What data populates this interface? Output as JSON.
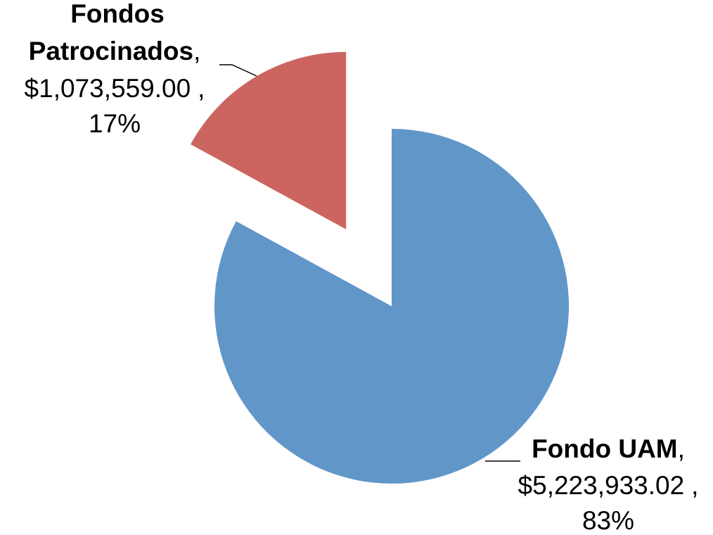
{
  "chart_data": {
    "type": "pie",
    "categories": [
      "Fondo UAM",
      "Fondos Patrocinados"
    ],
    "values": [
      5223933.02,
      1073559.0
    ],
    "value_labels": [
      "$5,223,933.02",
      "$1,073,559.00"
    ],
    "percent_labels": [
      "83%",
      "17%"
    ],
    "separator": ",",
    "colors": [
      "#6196c9",
      "#cc6560"
    ],
    "exploded": [
      false,
      true
    ]
  }
}
